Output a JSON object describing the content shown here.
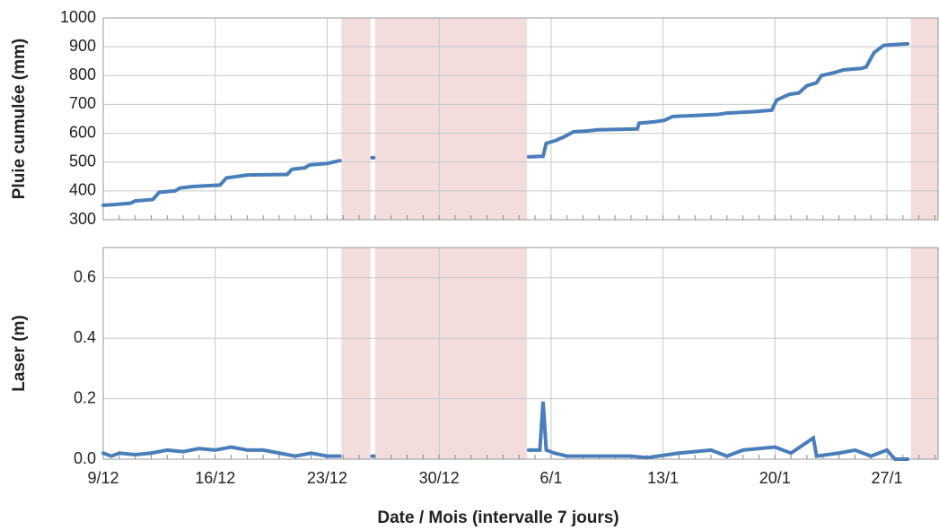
{
  "chart_data": [
    {
      "type": "line",
      "ylabel": "Pluie cumulée (mm)",
      "xlim": [
        0,
        52.2
      ],
      "ylim": [
        300,
        1000
      ],
      "yticks": [
        300,
        400,
        500,
        600,
        700,
        800,
        900,
        1000
      ],
      "grid": true,
      "shaded": [
        [
          14.9,
          16.7
        ],
        [
          17.0,
          26.5
        ],
        [
          50.5,
          52.2
        ]
      ],
      "shade_color": "#f2dcdc",
      "series": [
        {
          "color": "#4a7ebb",
          "x": [
            0,
            0.6,
            1.7,
            2.0,
            3.1,
            3.5,
            4.5,
            4.8,
            5.6,
            6.5,
            7.3,
            7.7,
            8.4,
            9.0,
            11.5,
            11.8,
            12.6,
            12.9,
            14.0,
            14.8,
            null,
            16.8,
            null,
            26.6,
            27.5,
            27.7,
            28.3,
            28.9,
            29.4,
            30.3,
            30.9,
            33.4,
            33.5,
            34.5,
            35.1,
            35.6,
            38.4,
            39.0,
            40.7,
            41.8,
            42.1,
            42.9,
            43.5,
            44.0,
            44.6,
            44.9,
            45.7,
            46.3,
            47.4,
            47.7,
            48.2,
            48.8,
            49.6,
            50.3
          ],
          "values": [
            350,
            352,
            357,
            365,
            370,
            395,
            400,
            410,
            415,
            418,
            420,
            445,
            450,
            455,
            457,
            475,
            480,
            490,
            495,
            505,
            null,
            515,
            null,
            518,
            520,
            565,
            575,
            590,
            605,
            608,
            612,
            615,
            635,
            640,
            645,
            658,
            665,
            670,
            675,
            680,
            715,
            735,
            740,
            765,
            775,
            800,
            810,
            820,
            825,
            830,
            880,
            905,
            908,
            910
          ]
        }
      ]
    },
    {
      "type": "line",
      "ylabel": "Laser (m)",
      "xlabel": "Date / Mois (intervalle 7 jours)",
      "xlim": [
        0,
        52.2
      ],
      "ylim": [
        0,
        0.7
      ],
      "xticks": [
        {
          "value": 0,
          "label": "9/12"
        },
        {
          "value": 7,
          "label": "16/12"
        },
        {
          "value": 14,
          "label": "23/12"
        },
        {
          "value": 21,
          "label": "30/12"
        },
        {
          "value": 28,
          "label": "6/1"
        },
        {
          "value": 35,
          "label": "13/1"
        },
        {
          "value": 42,
          "label": "20/1"
        },
        {
          "value": 49,
          "label": "27/1"
        }
      ],
      "yticks": [
        {
          "value": 0,
          "label": "0.0"
        },
        0.2,
        0.4,
        0.6
      ],
      "grid": true,
      "shaded": [
        [
          14.9,
          16.7
        ],
        [
          17.0,
          26.5
        ],
        [
          50.5,
          52.2
        ]
      ],
      "shade_color": "#f2dcdc",
      "series": [
        {
          "color": "#4a7ebb",
          "x": [
            0,
            0.5,
            1,
            2,
            3,
            4,
            5,
            6,
            7,
            8,
            9,
            10,
            11,
            12,
            13,
            14,
            14.8,
            null,
            16.8,
            null,
            26.6,
            27.3,
            27.5,
            27.7,
            28.2,
            29,
            31,
            33,
            34,
            36,
            38,
            39,
            40,
            42,
            43,
            44.4,
            44.6,
            46,
            47,
            48,
            49,
            49.5,
            50.3
          ],
          "values": [
            0.02,
            0.01,
            0.02,
            0.015,
            0.02,
            0.03,
            0.025,
            0.035,
            0.03,
            0.04,
            0.03,
            0.03,
            0.02,
            0.01,
            0.02,
            0.01,
            0.01,
            null,
            0.01,
            null,
            0.03,
            0.03,
            0.19,
            0.03,
            0.02,
            0.01,
            0.01,
            0.01,
            0.005,
            0.02,
            0.03,
            0.01,
            0.03,
            0.04,
            0.02,
            0.07,
            0.01,
            0.02,
            0.03,
            0.01,
            0.03,
            0,
            0
          ]
        }
      ]
    }
  ]
}
